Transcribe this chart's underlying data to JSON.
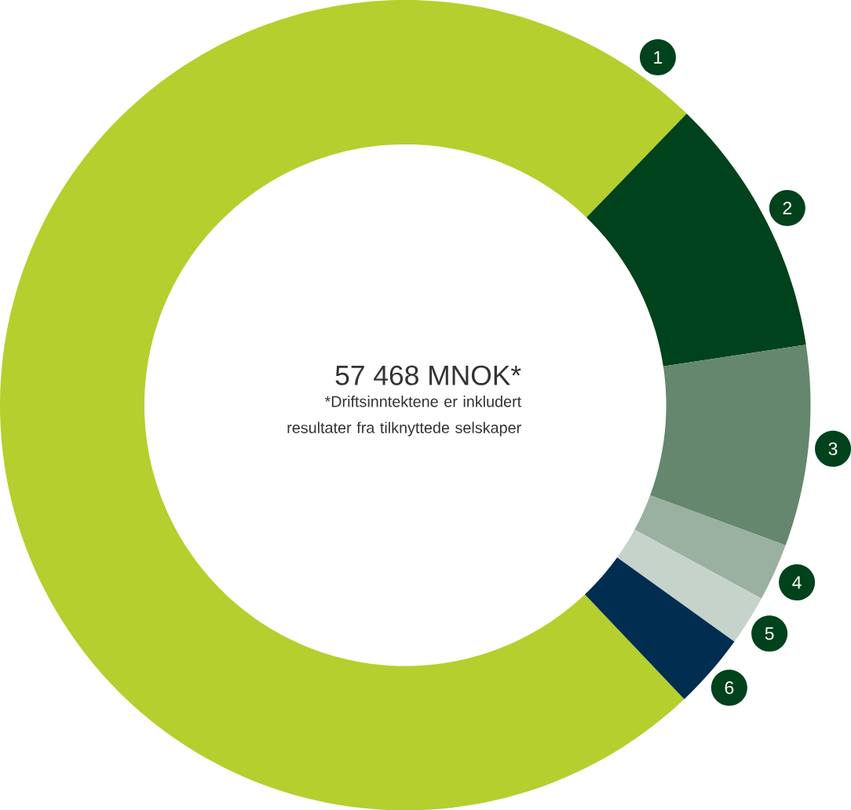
{
  "chart_data": {
    "type": "donut",
    "title": "57 468 MNOK*",
    "annotations": [
      "*Driftsinntektene er inkludert resultater fra tilknyttede selskaper"
    ],
    "categories": [
      "1",
      "2",
      "3",
      "4",
      "5",
      "6"
    ],
    "values": [
      74.3,
      10.4,
      8.0,
      2.3,
      2.0,
      3.0
    ],
    "colors": [
      "#b5cf2e",
      "#00421c",
      "#64876d",
      "#9ab0a0",
      "#c6d3ca",
      "#002d50"
    ]
  }
}
